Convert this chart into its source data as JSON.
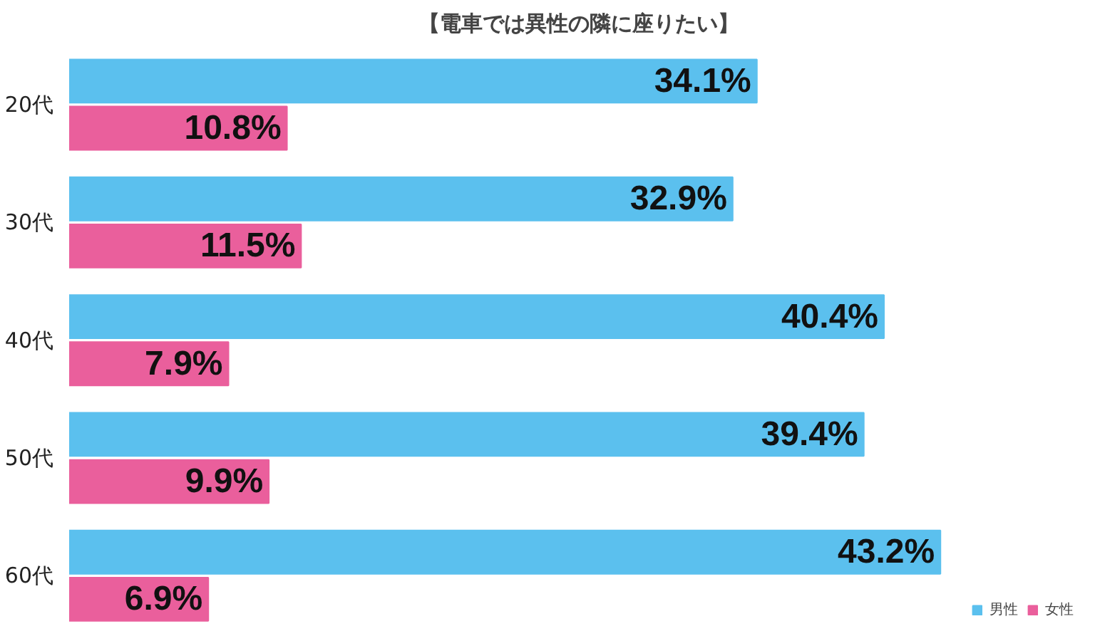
{
  "chart_data": {
    "type": "bar",
    "orientation": "horizontal",
    "title": "【電車では異性の隣に座りたい】",
    "categories": [
      "20代",
      "30代",
      "40代",
      "50代",
      "60代"
    ],
    "series": [
      {
        "name": "男性",
        "color": "#5bc0ee",
        "values": [
          34.1,
          32.9,
          40.4,
          39.4,
          43.2
        ],
        "value_labels": [
          "34.1%",
          "32.9%",
          "40.4%",
          "39.4%",
          "43.2%"
        ]
      },
      {
        "name": "女性",
        "color": "#ea5f9c",
        "values": [
          10.8,
          11.5,
          7.9,
          9.9,
          6.9
        ],
        "value_labels": [
          "10.8%",
          "11.5%",
          "7.9%",
          "9.9%",
          "6.9%"
        ]
      }
    ],
    "legend": "bottom right"
  }
}
